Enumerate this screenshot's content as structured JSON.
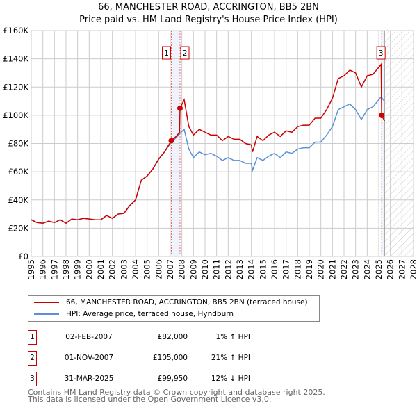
{
  "chart_data": {
    "type": "line",
    "title": "66, MANCHESTER ROAD, ACCRINGTON, BB5 2BN",
    "subtitle": "Price paid vs. HM Land Registry's House Price Index (HPI)",
    "xlim": [
      1995,
      2028
    ],
    "ylim": [
      0,
      160000
    ],
    "x_ticks": [
      "1995",
      "1996",
      "1997",
      "1998",
      "1999",
      "2000",
      "2001",
      "2002",
      "2003",
      "2004",
      "2005",
      "2006",
      "2007",
      "2008",
      "2009",
      "2010",
      "2011",
      "2012",
      "2013",
      "2014",
      "2015",
      "2016",
      "2017",
      "2018",
      "2019",
      "2020",
      "2021",
      "2022",
      "2023",
      "2024",
      "2025",
      "2026",
      "2027",
      "2028"
    ],
    "y_ticks": [
      {
        "v": 0,
        "label": "£0"
      },
      {
        "v": 20000,
        "label": "£20K"
      },
      {
        "v": 40000,
        "label": "£40K"
      },
      {
        "v": 60000,
        "label": "£60K"
      },
      {
        "v": 80000,
        "label": "£80K"
      },
      {
        "v": 100000,
        "label": "£100K"
      },
      {
        "v": 120000,
        "label": "£120K"
      },
      {
        "v": 140000,
        "label": "£140K"
      },
      {
        "v": 160000,
        "label": "£160K"
      }
    ],
    "grid": true,
    "series": [
      {
        "name": "66, MANCHESTER ROAD, ACCRINGTON, BB5 2BN (terraced house)",
        "color": "#cc0000",
        "x": [
          1995,
          1995.5,
          1996,
          1996.5,
          1997,
          1997.5,
          1998,
          1998.5,
          1999,
          1999.5,
          2000,
          2000.5,
          2001,
          2001.5,
          2002,
          2002.5,
          2003,
          2003.5,
          2004,
          2004.5,
          2005,
          2005.5,
          2006,
          2006.5,
          2007.09,
          2007.5,
          2007.8,
          2007.84,
          2008.2,
          2008.6,
          2009,
          2009.5,
          2010,
          2010.5,
          2011,
          2011.5,
          2012,
          2012.5,
          2013,
          2013.5,
          2014,
          2014.1,
          2014.5,
          2015,
          2015.5,
          2016,
          2016.5,
          2017,
          2017.5,
          2018,
          2018.5,
          2019,
          2019.5,
          2020,
          2020.5,
          2021,
          2021.5,
          2022,
          2022.5,
          2023,
          2023.5,
          2024,
          2024.5,
          2025.2,
          2025.25,
          2025.5
        ],
        "y": [
          26000,
          24000,
          23500,
          25000,
          24000,
          26000,
          23500,
          26500,
          26000,
          27000,
          26500,
          26000,
          26000,
          29000,
          27000,
          30000,
          30500,
          36000,
          40000,
          54000,
          57000,
          62000,
          69000,
          74000,
          82000,
          85000,
          88000,
          105000,
          111000,
          92000,
          86000,
          90000,
          88000,
          86000,
          86000,
          82000,
          85000,
          83000,
          83000,
          80000,
          79000,
          74000,
          85000,
          82000,
          86000,
          88000,
          85000,
          89000,
          88000,
          92000,
          93000,
          93000,
          98000,
          98000,
          104000,
          112000,
          126000,
          128000,
          132000,
          130000,
          120000,
          128000,
          129000,
          136000,
          99950,
          96000
        ]
      },
      {
        "name": "HPI: Average price, terraced house, Hyndburn",
        "color": "#5b8fd6",
        "x": [
          1995,
          1995.5,
          1996,
          1996.5,
          1997,
          1997.5,
          1998,
          1998.5,
          1999,
          1999.5,
          2000,
          2000.5,
          2001,
          2001.5,
          2002,
          2002.5,
          2003,
          2003.5,
          2004,
          2004.5,
          2005,
          2005.5,
          2006,
          2006.5,
          2007.09,
          2007.5,
          2007.8,
          2008.2,
          2008.6,
          2009,
          2009.5,
          2010,
          2010.5,
          2011,
          2011.5,
          2012,
          2012.5,
          2013,
          2013.5,
          2014,
          2014.1,
          2014.5,
          2015,
          2015.5,
          2016,
          2016.5,
          2017,
          2017.5,
          2018,
          2018.5,
          2019,
          2019.5,
          2020,
          2020.5,
          2021,
          2021.5,
          2022,
          2022.5,
          2023,
          2023.5,
          2024,
          2024.5,
          2025.2,
          2025.5
        ],
        "y": [
          26000,
          24000,
          23500,
          25000,
          24000,
          26000,
          23500,
          26500,
          26000,
          27000,
          26500,
          26000,
          26000,
          29000,
          27000,
          30000,
          30500,
          36000,
          40000,
          54000,
          57000,
          62000,
          69000,
          74000,
          81000,
          84000,
          87000,
          90000,
          76000,
          70000,
          74000,
          72000,
          73000,
          71000,
          68000,
          70000,
          68000,
          68000,
          66000,
          66000,
          61000,
          70000,
          68000,
          71000,
          73000,
          70000,
          74000,
          73000,
          76000,
          77000,
          77000,
          81000,
          81000,
          86000,
          92000,
          104000,
          106000,
          108000,
          104000,
          97000,
          104000,
          106000,
          113000,
          110000
        ]
      }
    ],
    "sales": [
      {
        "label": "1",
        "x": 2007.09,
        "y": 82000,
        "date": "02-FEB-2007",
        "price": "£82,000",
        "hpi": "1% ↑ HPI"
      },
      {
        "label": "2",
        "x": 2007.84,
        "y": 105000,
        "date": "01-NOV-2007",
        "price": "£105,000",
        "hpi": "21% ↑ HPI"
      },
      {
        "label": "3",
        "x": 2025.25,
        "y": 99950,
        "date": "31-MAR-2025",
        "price": "£99,950",
        "hpi": "12% ↓ HPI"
      }
    ],
    "forecast_start": 2025.5,
    "legend_position": "below"
  },
  "footer": {
    "line1": "Contains HM Land Registry data © Crown copyright and database right 2025.",
    "line2": "This data is licensed under the Open Government Licence v3.0."
  }
}
